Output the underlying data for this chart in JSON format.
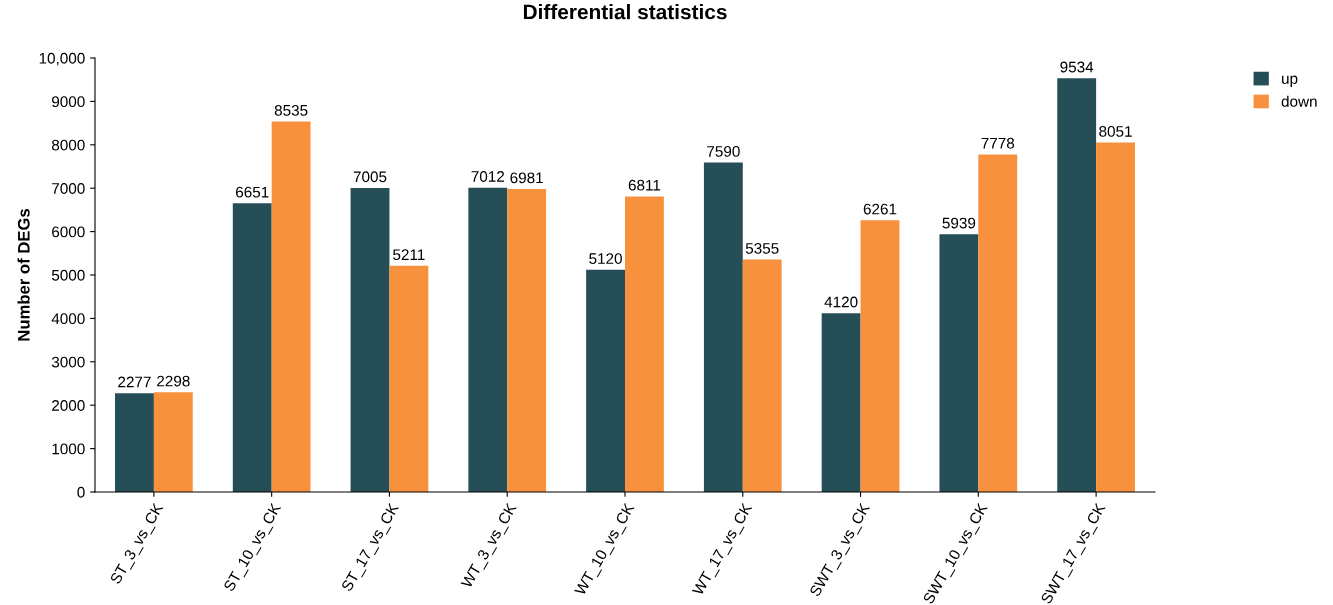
{
  "chart_data": {
    "type": "bar",
    "title": "Differential statistics",
    "ylabel": "Number of DEGs",
    "categories": [
      "ST_3_vs_CK",
      "ST_10_vs_CK",
      "ST_17_vs_CK",
      "WT_3_vs_CK",
      "WT_10_vs_CK",
      "WT_17_vs_CK",
      "SWT_3_vs_CK",
      "SWT_10_vs_CK",
      "SWT_17_vs_CK"
    ],
    "series": [
      {
        "name": "up",
        "color": "#264e57",
        "values": [
          2277,
          6651,
          7005,
          7012,
          5120,
          7590,
          4120,
          5939,
          9534
        ]
      },
      {
        "name": "down",
        "color": "#f7913d",
        "values": [
          2298,
          8535,
          5211,
          6981,
          6811,
          5355,
          6261,
          7778,
          8051
        ]
      }
    ],
    "ylim": [
      0,
      10000
    ],
    "yticks": [
      0,
      1000,
      2000,
      3000,
      4000,
      5000,
      6000,
      7000,
      8000,
      9000,
      {
        "value": 10000,
        "label": "10,000"
      }
    ],
    "data_labels": true,
    "grid": false,
    "legend": "top right"
  }
}
